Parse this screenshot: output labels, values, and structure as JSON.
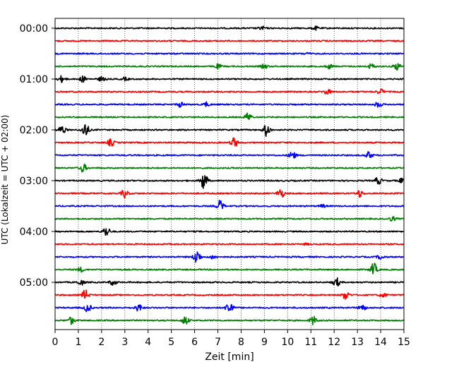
{
  "chart_data": {
    "type": "line",
    "title": "",
    "xlabel": "Zeit  [min]",
    "ylabel": "UTC (Lokalzeit = UTC + 02:00)",
    "xlim": [
      0,
      15
    ],
    "x_ticks": [
      "0",
      "1",
      "2",
      "3",
      "4",
      "5",
      "6",
      "7",
      "8",
      "9",
      "10",
      "11",
      "12",
      "13",
      "14",
      "15"
    ],
    "y_ticks": [
      "00:00",
      "01:00",
      "02:00",
      "03:00",
      "04:00",
      "05:00"
    ],
    "grid": "vertical dotted at each minute",
    "trace_colors": [
      "#000000",
      "#ff0000",
      "#0000ff",
      "#008000"
    ],
    "traces_count": 24,
    "trace_interval_min": 15,
    "events_description": "amplitude bursts (time in min within trace, relative amplitude)",
    "traces": [
      {
        "start": "00:00",
        "events": [
          [
            8.9,
            0.25
          ],
          [
            11.2,
            0.25
          ]
        ]
      },
      {
        "start": "00:15",
        "events": []
      },
      {
        "start": "00:30",
        "events": [
          [
            10.8,
            0.1
          ]
        ]
      },
      {
        "start": "00:45",
        "events": [
          [
            7.0,
            0.3
          ],
          [
            9.0,
            0.3
          ],
          [
            11.8,
            0.3
          ],
          [
            13.6,
            0.35
          ],
          [
            14.7,
            0.5
          ]
        ]
      },
      {
        "start": "01:00",
        "events": [
          [
            0.3,
            0.45
          ],
          [
            1.2,
            0.4
          ],
          [
            2.0,
            0.3
          ],
          [
            3.0,
            0.2
          ]
        ]
      },
      {
        "start": "01:15",
        "events": [
          [
            11.7,
            0.4
          ],
          [
            14.0,
            0.4
          ]
        ]
      },
      {
        "start": "01:30",
        "events": [
          [
            5.4,
            0.35
          ],
          [
            6.5,
            0.3
          ],
          [
            13.9,
            0.4
          ]
        ]
      },
      {
        "start": "01:45",
        "events": [
          [
            8.3,
            0.6
          ]
        ]
      },
      {
        "start": "02:00",
        "events": [
          [
            0.3,
            0.6
          ],
          [
            1.3,
            1.0
          ],
          [
            9.1,
            0.9
          ]
        ]
      },
      {
        "start": "02:15",
        "events": [
          [
            2.4,
            0.5
          ],
          [
            7.7,
            0.7
          ]
        ]
      },
      {
        "start": "02:30",
        "events": [
          [
            10.2,
            0.6
          ],
          [
            13.5,
            0.5
          ]
        ]
      },
      {
        "start": "02:45",
        "events": [
          [
            1.2,
            0.6
          ]
        ]
      },
      {
        "start": "03:00",
        "events": [
          [
            6.4,
            1.3
          ],
          [
            13.9,
            0.5
          ],
          [
            14.9,
            0.3
          ]
        ]
      },
      {
        "start": "03:15",
        "events": [
          [
            3.0,
            0.6
          ],
          [
            9.7,
            0.7
          ],
          [
            13.1,
            0.5
          ]
        ]
      },
      {
        "start": "03:30",
        "events": [
          [
            7.1,
            0.8
          ],
          [
            11.5,
            0.2
          ]
        ]
      },
      {
        "start": "03:45",
        "events": [
          [
            14.5,
            0.3
          ]
        ]
      },
      {
        "start": "04:00",
        "events": [
          [
            2.2,
            0.7
          ]
        ]
      },
      {
        "start": "04:15",
        "events": [
          [
            10.8,
            0.1
          ]
        ]
      },
      {
        "start": "04:30",
        "events": [
          [
            6.1,
            1.0
          ],
          [
            6.8,
            0.3
          ],
          [
            14.0,
            0.3
          ]
        ]
      },
      {
        "start": "04:45",
        "events": [
          [
            1.1,
            0.3
          ],
          [
            13.7,
            0.9
          ]
        ]
      },
      {
        "start": "05:00",
        "events": [
          [
            1.1,
            0.4
          ],
          [
            2.5,
            0.4
          ],
          [
            12.1,
            0.6
          ]
        ]
      },
      {
        "start": "05:15",
        "events": [
          [
            1.3,
            0.7
          ],
          [
            12.5,
            0.6
          ],
          [
            14.1,
            0.3
          ]
        ]
      },
      {
        "start": "05:30",
        "events": [
          [
            1.4,
            0.6
          ],
          [
            3.6,
            0.5
          ],
          [
            7.5,
            1.0
          ],
          [
            13.2,
            0.5
          ]
        ]
      },
      {
        "start": "05:45",
        "events": [
          [
            0.7,
            0.5
          ],
          [
            5.6,
            0.6
          ],
          [
            11.1,
            0.6
          ]
        ]
      }
    ]
  }
}
